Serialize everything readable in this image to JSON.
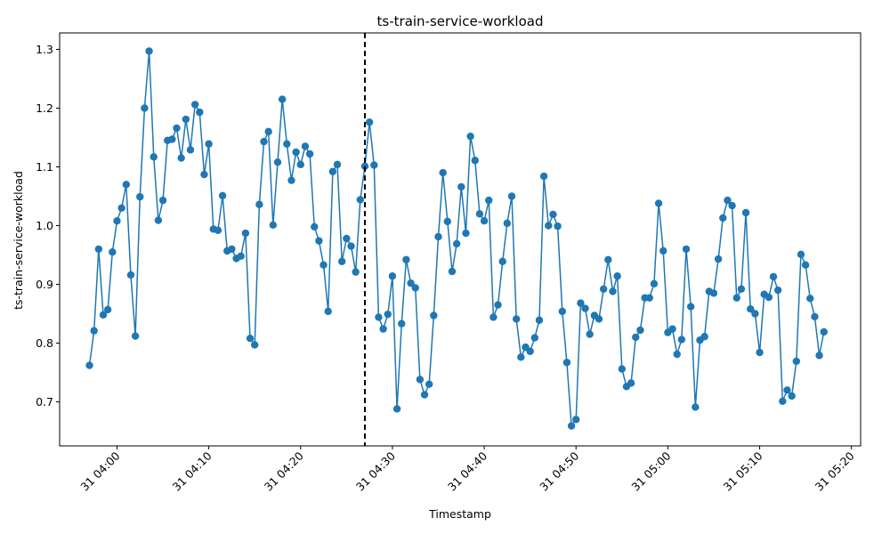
{
  "chart_data": {
    "type": "line",
    "title": "ts-train-service-workload",
    "xlabel": "Timestamp",
    "ylabel": "ts-train-service-workload",
    "ylim": [
      0.625,
      1.328
    ],
    "xlim": [
      "03:53:45",
      "05:21:00"
    ],
    "grid": false,
    "line_color": "#1f77b4",
    "marker_color": "#1f77b4",
    "marker": "circle",
    "vline": {
      "x": "04:27:00",
      "style": "dashed",
      "color": "#000000"
    },
    "x_ticks": [
      {
        "t": "04:00",
        "label": "31 04:00"
      },
      {
        "t": "04:10",
        "label": "31 04:10"
      },
      {
        "t": "04:20",
        "label": "31 04:20"
      },
      {
        "t": "04:30",
        "label": "31 04:30"
      },
      {
        "t": "04:40",
        "label": "31 04:40"
      },
      {
        "t": "04:50",
        "label": "31 04:50"
      },
      {
        "t": "05:00",
        "label": "31 05:00"
      },
      {
        "t": "05:10",
        "label": "31 05:10"
      },
      {
        "t": "05:20",
        "label": "31 05:20"
      }
    ],
    "y_ticks": [
      "0.7",
      "0.8",
      "0.9",
      "1.0",
      "1.1",
      "1.2",
      "1.3"
    ],
    "x_start": "03:57:00",
    "x_step_seconds": 30,
    "values": [
      0.762,
      0.821,
      0.96,
      0.848,
      0.857,
      0.955,
      1.008,
      1.03,
      1.07,
      0.916,
      0.812,
      1.049,
      1.2,
      1.297,
      1.117,
      1.009,
      1.043,
      1.145,
      1.147,
      1.166,
      1.115,
      1.181,
      1.129,
      1.206,
      1.193,
      1.087,
      1.139,
      0.994,
      0.992,
      1.051,
      0.957,
      0.96,
      0.944,
      0.948,
      0.987,
      0.808,
      0.797,
      1.036,
      1.143,
      1.16,
      1.001,
      1.108,
      1.215,
      1.139,
      1.077,
      1.125,
      1.104,
      1.135,
      1.122,
      0.998,
      0.974,
      0.933,
      0.854,
      1.092,
      1.104,
      0.939,
      0.978,
      0.965,
      0.921,
      1.044,
      1.101,
      1.176,
      1.103,
      0.844,
      0.824,
      0.849,
      0.914,
      0.688,
      0.833,
      0.942,
      0.902,
      0.894,
      0.738,
      0.712,
      0.73,
      0.847,
      0.981,
      1.09,
      1.007,
      0.922,
      0.969,
      1.066,
      0.987,
      1.152,
      1.111,
      1.02,
      1.008,
      1.043,
      0.844,
      0.865,
      0.939,
      1.004,
      1.05,
      0.841,
      0.776,
      0.793,
      0.786,
      0.809,
      0.839,
      1.084,
      1.0,
      1.019,
      0.999,
      0.854,
      0.767,
      0.659,
      0.67,
      0.868,
      0.859,
      0.815,
      0.847,
      0.841,
      0.892,
      0.942,
      0.888,
      0.914,
      0.756,
      0.726,
      0.732,
      0.81,
      0.822,
      0.877,
      0.877,
      0.901,
      1.038,
      0.957,
      0.818,
      0.824,
      0.781,
      0.806,
      0.96,
      0.862,
      0.691,
      0.805,
      0.811,
      0.888,
      0.885,
      0.943,
      1.013,
      1.043,
      1.034,
      0.877,
      0.892,
      1.022,
      0.858,
      0.85,
      0.784,
      0.883,
      0.878,
      0.913,
      0.89,
      0.701,
      0.72,
      0.71,
      0.769,
      0.951,
      0.933,
      0.876,
      0.845,
      0.779,
      0.819
    ]
  }
}
